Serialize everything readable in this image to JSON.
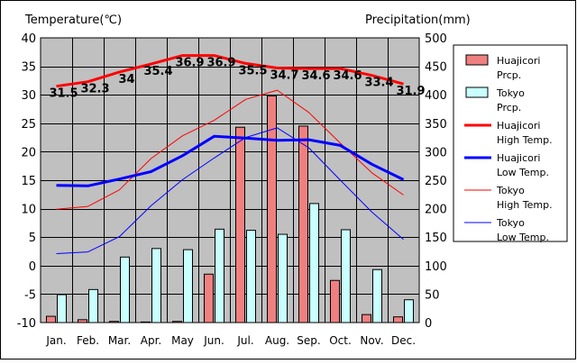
{
  "chart_data": {
    "type": "bar",
    "categories": [
      "Jan.",
      "Feb.",
      "Mar.",
      "Apr.",
      "May",
      "Jun.",
      "Jul.",
      "Aug.",
      "Sep.",
      "Oct.",
      "Nov.",
      "Dec."
    ],
    "left_axis": {
      "label": "Temperature(℃)",
      "range": [
        -10,
        40
      ],
      "ticks": [
        -10,
        -5,
        0,
        5,
        10,
        15,
        20,
        25,
        30,
        35,
        40
      ]
    },
    "right_axis": {
      "label": "Precipitation(mm)",
      "range": [
        0,
        500
      ],
      "ticks": [
        0,
        50,
        100,
        150,
        200,
        250,
        300,
        350,
        400,
        450,
        500
      ]
    },
    "bar_series": [
      {
        "name": "Huajicori Prcp.",
        "color": "#f08080",
        "axis": "right",
        "values": [
          11,
          5,
          2,
          1,
          2,
          85,
          343,
          398,
          345,
          74,
          14,
          10
        ]
      },
      {
        "name": "Tokyo Prcp.",
        "color": "#c8ffff",
        "axis": "right",
        "values": [
          49,
          58,
          115,
          130,
          128,
          164,
          162,
          155,
          209,
          163,
          93,
          40
        ]
      }
    ],
    "line_series": [
      {
        "name": "Huajicori High Temp.",
        "color": "#ff0000",
        "width": 3,
        "axis": "left",
        "values": [
          31.5,
          32.3,
          34,
          35.4,
          36.9,
          36.9,
          35.5,
          34.7,
          34.6,
          34.6,
          33.4,
          31.9
        ],
        "labels": [
          "31.5",
          "32.3",
          "34",
          "35.4",
          "36.9",
          "36.9",
          "35.5",
          "34.7",
          "34.6",
          "34.6",
          "33.4",
          "31.9"
        ]
      },
      {
        "name": "Huajicori Low Temp.",
        "color": "#0000ff",
        "width": 3,
        "axis": "left",
        "values": [
          14.1,
          14.0,
          15.2,
          16.5,
          19.3,
          22.7,
          22.4,
          22.0,
          22.1,
          21.1,
          17.8,
          15.1
        ]
      },
      {
        "name": "Tokyo High Temp.",
        "color": "#ff0000",
        "width": 1,
        "axis": "left",
        "values": [
          9.9,
          10.4,
          13.3,
          18.8,
          22.8,
          25.5,
          29.2,
          30.8,
          26.9,
          21.5,
          16.3,
          12.4
        ]
      },
      {
        "name": "Tokyo Low Temp.",
        "color": "#0000ff",
        "width": 1,
        "axis": "left",
        "values": [
          2.1,
          2.4,
          5.1,
          10.5,
          15.1,
          18.9,
          22.5,
          24.2,
          20.7,
          15.0,
          9.4,
          4.6
        ]
      }
    ],
    "legend": {
      "placement": "right",
      "entries": [
        {
          "kind": "bar",
          "color": "#f08080",
          "line1": "Huajicori",
          "line2": "Prcp."
        },
        {
          "kind": "bar",
          "color": "#c8ffff",
          "line1": "Tokyo",
          "line2": "Prcp."
        },
        {
          "kind": "line",
          "color": "#ff0000",
          "thick": true,
          "line1": "Huajicori",
          "line2": "High Temp."
        },
        {
          "kind": "line",
          "color": "#0000ff",
          "thick": true,
          "line1": "Huajicori",
          "line2": "Low Temp."
        },
        {
          "kind": "line",
          "color": "#ff0000",
          "thick": false,
          "line1": "Tokyo",
          "line2": "High Temp."
        },
        {
          "kind": "line",
          "color": "#0000ff",
          "thick": false,
          "line1": "Tokyo",
          "line2": "Low Temp."
        }
      ]
    },
    "plot_background": "#c0c0c0",
    "grid": true
  }
}
